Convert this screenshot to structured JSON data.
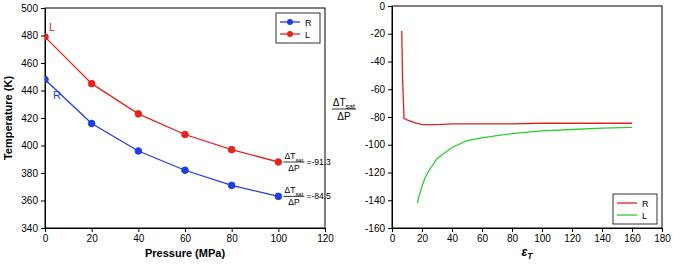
{
  "chart_data": [
    {
      "type": "line",
      "x_label": "Pressure (MPa)",
      "y_label": "Temperature (K)",
      "xlim": [
        0,
        120
      ],
      "xticks": [
        0,
        20,
        40,
        60,
        80,
        100,
        120
      ],
      "ylim": [
        340,
        500
      ],
      "yticks": [
        340,
        360,
        380,
        400,
        420,
        440,
        460,
        480,
        500
      ],
      "grid": false,
      "legend": "upper right",
      "marker": "circle",
      "x": [
        0,
        20,
        40,
        60,
        80,
        100
      ],
      "series": [
        {
          "name": "R",
          "label": "R",
          "color": "#1f3de0",
          "values": [
            448,
            416,
            396,
            382,
            371,
            363
          ],
          "annotation": {
            "numerator": "ΔT",
            "numerator_sub": "sat",
            "denominator": "ΔP",
            "text": "=-84.5"
          }
        },
        {
          "name": "L",
          "label": "L",
          "color": "#e8231e",
          "values": [
            479,
            445,
            423,
            408,
            397,
            388
          ],
          "annotation": {
            "numerator": "ΔT",
            "numerator_sub": "sat",
            "denominator": "ΔP",
            "text": "=-91.3"
          }
        }
      ]
    },
    {
      "type": "line",
      "x_label": {
        "text": "ε",
        "sub": "T"
      },
      "y_label": {
        "numerator": "ΔT",
        "numerator_sub": "sat",
        "denominator": "ΔP"
      },
      "xlim": [
        0,
        180
      ],
      "xticks": [
        0,
        20,
        40,
        60,
        80,
        100,
        120,
        140,
        160,
        180
      ],
      "ylim": [
        -160,
        0
      ],
      "yticks": [
        -160,
        -140,
        -120,
        -100,
        -80,
        -60,
        -40,
        -20,
        0
      ],
      "grid": false,
      "legend": "lower right",
      "marker": "none",
      "series": [
        {
          "name": "R",
          "color": "#e0201c",
          "x": [
            6.5,
            7,
            8,
            10,
            15,
            20,
            30,
            40,
            60,
            80,
            100,
            120,
            140,
            160
          ],
          "values": [
            -18,
            -50,
            -81,
            -82,
            -84,
            -85.5,
            -85.5,
            -85,
            -85,
            -85,
            -84.5,
            -84.5,
            -84.5,
            -84.5
          ]
        },
        {
          "name": "L",
          "color": "#2fcc2f",
          "x": [
            17,
            18,
            20,
            22,
            25,
            30,
            35,
            40,
            50,
            60,
            70,
            80,
            100,
            120,
            140,
            160
          ],
          "values": [
            -142,
            -137,
            -130,
            -124,
            -118,
            -110,
            -106,
            -102,
            -97,
            -95,
            -93.5,
            -92,
            -90,
            -89,
            -88,
            -87.5
          ]
        }
      ]
    }
  ]
}
